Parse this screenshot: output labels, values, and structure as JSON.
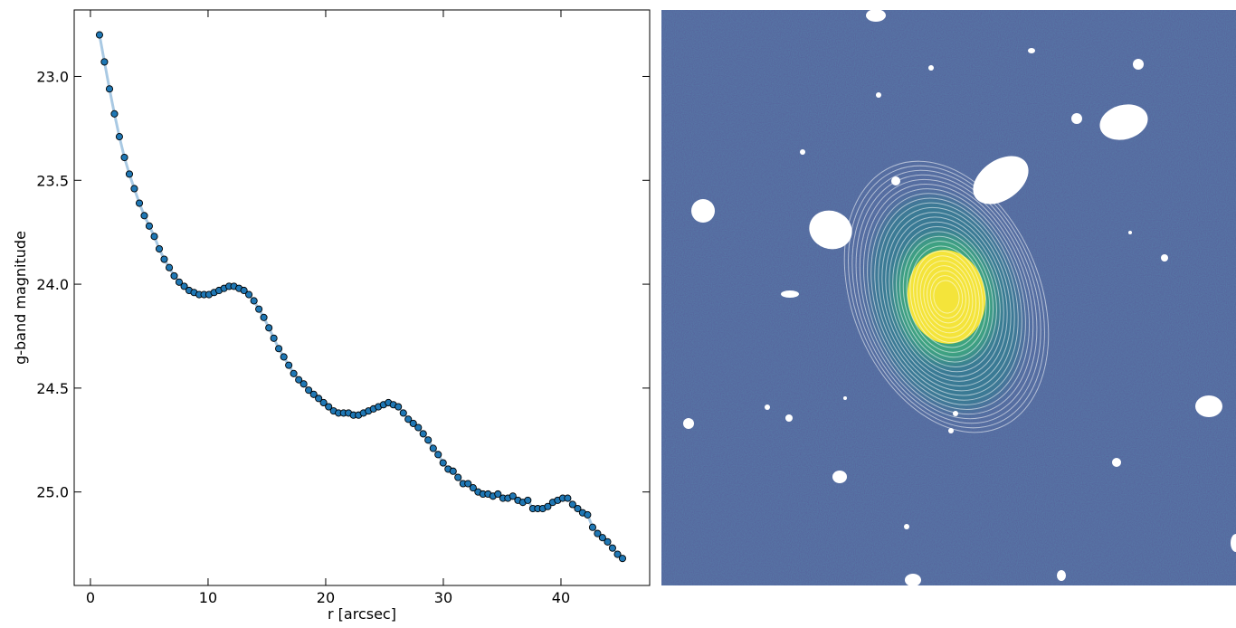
{
  "chart_data": {
    "type": "line",
    "xlabel": "r [arcsec]",
    "ylabel": "g-band magnitude",
    "x": [
      0.77,
      1.19,
      1.62,
      2.04,
      2.46,
      2.89,
      3.31,
      3.73,
      4.16,
      4.58,
      5.0,
      5.43,
      5.85,
      6.27,
      6.7,
      7.12,
      7.54,
      7.97,
      8.39,
      8.81,
      9.24,
      9.66,
      10.08,
      10.51,
      10.93,
      11.36,
      11.78,
      12.2,
      12.63,
      13.05,
      13.47,
      13.9,
      14.32,
      14.74,
      15.17,
      15.59,
      16.01,
      16.44,
      16.86,
      17.28,
      17.71,
      18.13,
      18.55,
      18.98,
      19.4,
      19.82,
      20.25,
      20.67,
      21.09,
      21.52,
      21.94,
      22.36,
      22.79,
      23.21,
      23.64,
      24.06,
      24.48,
      24.91,
      25.33,
      25.75,
      26.17,
      26.6,
      27.02,
      27.44,
      27.87,
      28.29,
      28.71,
      29.14,
      29.56,
      29.98,
      30.41,
      30.83,
      31.25,
      31.68,
      32.1,
      32.53,
      32.95,
      33.37,
      33.8,
      34.22,
      34.64,
      35.07,
      35.49,
      35.91,
      36.34,
      36.76,
      37.18,
      37.61,
      38.03,
      38.45,
      38.88,
      39.3,
      39.72,
      40.15,
      40.57,
      40.99,
      41.42,
      41.84,
      42.26,
      42.69,
      43.11,
      43.53,
      43.96,
      44.38,
      44.81,
      45.23
    ],
    "values": [
      22.8,
      22.93,
      23.06,
      23.18,
      23.29,
      23.39,
      23.47,
      23.54,
      23.61,
      23.67,
      23.72,
      23.77,
      23.83,
      23.88,
      23.92,
      23.96,
      23.99,
      24.01,
      24.03,
      24.04,
      24.05,
      24.05,
      24.05,
      24.04,
      24.03,
      24.02,
      24.01,
      24.01,
      24.02,
      24.03,
      24.05,
      24.08,
      24.12,
      24.16,
      24.21,
      24.26,
      24.31,
      24.35,
      24.39,
      24.43,
      24.46,
      24.48,
      24.51,
      24.53,
      24.55,
      24.57,
      24.59,
      24.61,
      24.62,
      24.62,
      24.62,
      24.63,
      24.63,
      24.62,
      24.61,
      24.6,
      24.59,
      24.58,
      24.57,
      24.58,
      24.59,
      24.62,
      24.65,
      24.67,
      24.69,
      24.72,
      24.75,
      24.79,
      24.82,
      24.86,
      24.89,
      24.9,
      24.93,
      24.96,
      24.96,
      24.98,
      25.0,
      25.01,
      25.01,
      25.02,
      25.01,
      25.03,
      25.03,
      25.02,
      25.04,
      25.05,
      25.04,
      25.08,
      25.08,
      25.08,
      25.07,
      25.05,
      25.04,
      25.03,
      25.03,
      25.06,
      25.08,
      25.1,
      25.11,
      25.17,
      25.2,
      25.22,
      25.24,
      25.27,
      25.3,
      25.32
    ],
    "color": "#1f77b4",
    "line_color": "#a9c9e3",
    "xlim": [
      -1.38,
      47.54
    ],
    "ylim": [
      25.45,
      22.68
    ],
    "xticks": [
      0,
      10,
      20,
      30,
      40
    ],
    "yticks": [
      {
        "value": 23,
        "label": "23.0"
      },
      23.5,
      {
        "value": 24,
        "label": "24.0"
      },
      24.5,
      {
        "value": 25,
        "label": "25.0"
      }
    ]
  }
}
